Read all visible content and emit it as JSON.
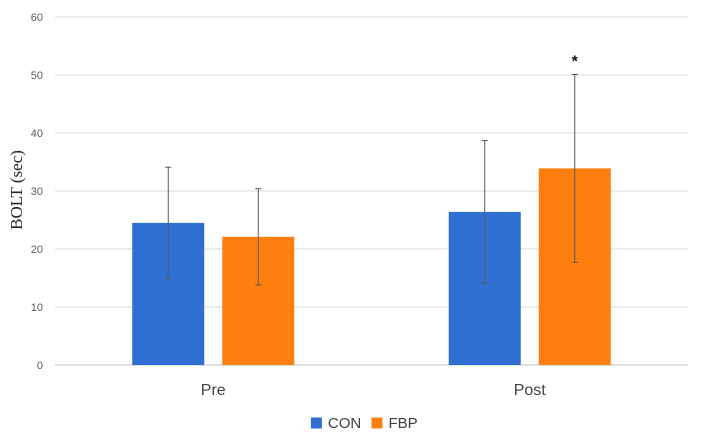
{
  "chart_data": {
    "type": "bar",
    "title": "",
    "xlabel": "",
    "ylabel": "BOLT (sec)",
    "ylim": [
      0,
      60
    ],
    "yticks": [
      0,
      10,
      20,
      30,
      40,
      50,
      60
    ],
    "grid": true,
    "legend_position": "bottom",
    "categories": [
      "Pre",
      "Post"
    ],
    "series": [
      {
        "name": "CON",
        "color": "#2E6FD1",
        "values": [
          24.5,
          26.4
        ],
        "error": [
          9.6,
          12.3
        ]
      },
      {
        "name": "FBP",
        "color": "#FF7F0E",
        "values": [
          22.1,
          33.9
        ],
        "error": [
          8.3,
          16.2
        ]
      }
    ],
    "annotations": [
      {
        "category": "Post",
        "series": "FBP",
        "text": "*"
      }
    ]
  }
}
